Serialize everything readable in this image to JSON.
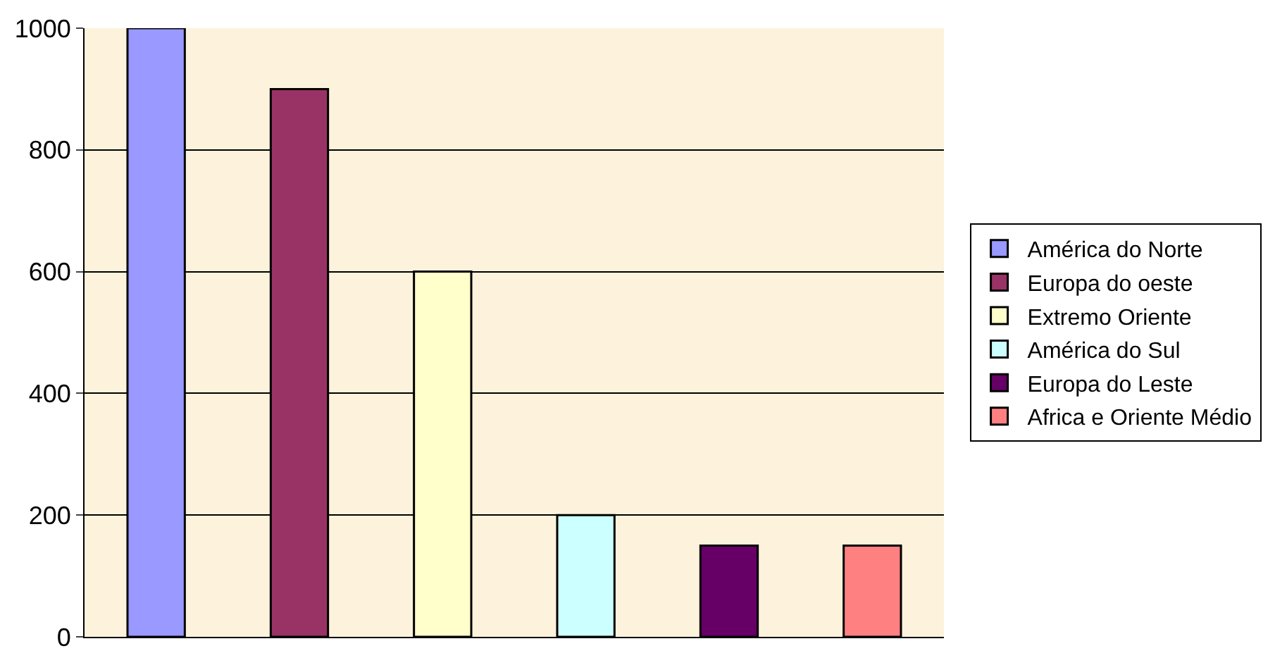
{
  "chart_data": {
    "type": "bar",
    "categories": [
      null,
      null,
      null,
      null,
      null,
      null
    ],
    "series": [
      {
        "name": "América do Norte",
        "color": "#9999ff",
        "values": [
          1000,
          null,
          null,
          null,
          null,
          null
        ]
      },
      {
        "name": "Europa do oeste",
        "color": "#993366",
        "values": [
          null,
          900,
          null,
          null,
          null,
          null
        ]
      },
      {
        "name": "Extremo Oriente",
        "color": "#ffffcc",
        "values": [
          null,
          null,
          600,
          null,
          null,
          null
        ]
      },
      {
        "name": "América do Sul",
        "color": "#ccffff",
        "values": [
          null,
          null,
          null,
          200,
          null,
          null
        ]
      },
      {
        "name": "Europa do Leste",
        "color": "#660066",
        "values": [
          null,
          null,
          null,
          null,
          150,
          null
        ]
      },
      {
        "name": "Africa e Oriente Médio",
        "color": "#ff8080",
        "values": [
          null,
          null,
          null,
          null,
          null,
          150
        ]
      }
    ],
    "ylim": [
      0,
      1000
    ],
    "yticks": [
      0,
      200,
      400,
      600,
      800,
      1000
    ],
    "grid": "y",
    "legend": "right"
  }
}
